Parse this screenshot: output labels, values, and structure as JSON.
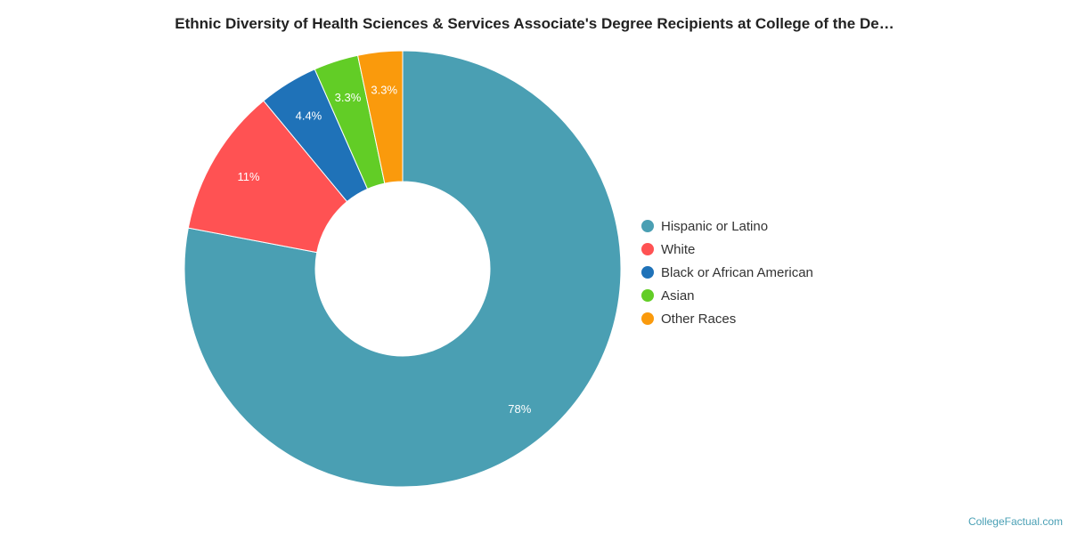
{
  "chart_data": {
    "type": "pie",
    "title": "Ethnic Diversity of Health Sciences & Services Associate's Degree Recipients at College of the De…",
    "donut": true,
    "legend_position": "right",
    "slices": [
      {
        "name": "Hispanic or Latino",
        "value": 78,
        "label": "78%",
        "color": "#4a9fb3"
      },
      {
        "name": "White",
        "value": 11,
        "label": "11%",
        "color": "#ff5253"
      },
      {
        "name": "Black or African American",
        "value": 4.4,
        "label": "4.4%",
        "color": "#1f72b8"
      },
      {
        "name": "Asian",
        "value": 3.3,
        "label": "3.3%",
        "color": "#62cd26"
      },
      {
        "name": "Other Races",
        "value": 3.3,
        "label": "3.3%",
        "color": "#fa9a0c"
      }
    ]
  },
  "credit": "CollegeFactual.com"
}
